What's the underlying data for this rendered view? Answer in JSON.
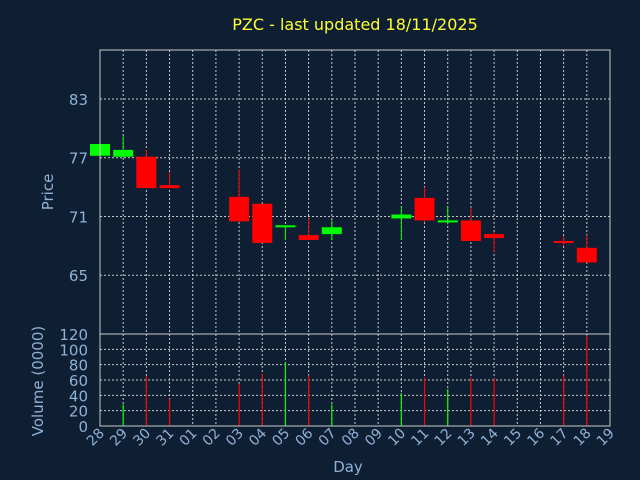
{
  "chart_data": {
    "type": "candlestick",
    "title": "PZC - last updated 18/11/2025",
    "xlabel": "Day",
    "x": [
      "28",
      "29",
      "30",
      "31",
      "01",
      "02",
      "03",
      "04",
      "05",
      "06",
      "07",
      "08",
      "09",
      "10",
      "11",
      "12",
      "13",
      "14",
      "15",
      "16",
      "17",
      "18",
      "19"
    ],
    "price_panel": {
      "ylabel": "Price",
      "ylim": [
        59,
        88
      ],
      "yticks": [
        65,
        71,
        77,
        83
      ],
      "candles": [
        {
          "day": "28",
          "open": 77.2,
          "high": 78.4,
          "low": 77.0,
          "close": 78.4
        },
        {
          "day": "29",
          "open": 77.1,
          "high": 79.2,
          "low": 77.0,
          "close": 77.8
        },
        {
          "day": "30",
          "open": 77.1,
          "high": 77.8,
          "low": 73.9,
          "close": 73.9
        },
        {
          "day": "31",
          "open": 74.2,
          "high": 75.5,
          "low": 73.9,
          "close": 73.9
        },
        {
          "day": "03",
          "open": 73.0,
          "high": 75.8,
          "low": 70.5,
          "close": 70.5
        },
        {
          "day": "04",
          "open": 72.3,
          "high": 72.3,
          "low": 68.3,
          "close": 68.3
        },
        {
          "day": "05",
          "open": 69.9,
          "high": 70.1,
          "low": 68.6,
          "close": 70.1
        },
        {
          "day": "06",
          "open": 69.1,
          "high": 70.8,
          "low": 68.6,
          "close": 68.6
        },
        {
          "day": "07",
          "open": 69.2,
          "high": 70.6,
          "low": 68.6,
          "close": 69.9
        },
        {
          "day": "10",
          "open": 70.8,
          "high": 72.0,
          "low": 68.6,
          "close": 71.2
        },
        {
          "day": "11",
          "open": 72.9,
          "high": 74.0,
          "low": 70.4,
          "close": 70.6
        },
        {
          "day": "12",
          "open": 70.4,
          "high": 72.0,
          "low": 70.2,
          "close": 70.6
        },
        {
          "day": "13",
          "open": 70.6,
          "high": 71.9,
          "low": 68.5,
          "close": 68.5
        },
        {
          "day": "14",
          "open": 69.2,
          "high": 69.4,
          "low": 67.4,
          "close": 68.8
        },
        {
          "day": "17",
          "open": 68.5,
          "high": 69.0,
          "low": 68.0,
          "close": 68.3
        },
        {
          "day": "18",
          "open": 67.8,
          "high": 69.1,
          "low": 66.3,
          "close": 66.3
        }
      ]
    },
    "volume_panel": {
      "ylabel": "Volume (0000)",
      "ylim": [
        0,
        120
      ],
      "yticks": [
        0,
        20,
        40,
        60,
        80,
        100,
        120
      ],
      "bars": [
        {
          "day": "29",
          "value": 28,
          "color": "#00ff00"
        },
        {
          "day": "30",
          "value": 65,
          "color": "#ff0000"
        },
        {
          "day": "31",
          "value": 35,
          "color": "#ff0000"
        },
        {
          "day": "03",
          "value": 55,
          "color": "#ff0000"
        },
        {
          "day": "04",
          "value": 68,
          "color": "#ff0000"
        },
        {
          "day": "05",
          "value": 83,
          "color": "#00ff00"
        },
        {
          "day": "06",
          "value": 66,
          "color": "#ff0000"
        },
        {
          "day": "07",
          "value": 28,
          "color": "#00ff00"
        },
        {
          "day": "10",
          "value": 43,
          "color": "#00ff00"
        },
        {
          "day": "11",
          "value": 63,
          "color": "#ff0000"
        },
        {
          "day": "12",
          "value": 48,
          "color": "#00ff00"
        },
        {
          "day": "13",
          "value": 63,
          "color": "#ff0000"
        },
        {
          "day": "14",
          "value": 62,
          "color": "#ff0000"
        },
        {
          "day": "17",
          "value": 66,
          "color": "#ff0000"
        },
        {
          "day": "18",
          "value": 118,
          "color": "#ff0000"
        }
      ]
    },
    "colors": {
      "background": "#0f1f33",
      "up": "#00ff00",
      "down": "#ff0000",
      "grid": "#c8c8c8",
      "text": "#8fb1d6",
      "title": "#ffff33",
      "frame": "#c8c8c8"
    },
    "grid": true
  }
}
